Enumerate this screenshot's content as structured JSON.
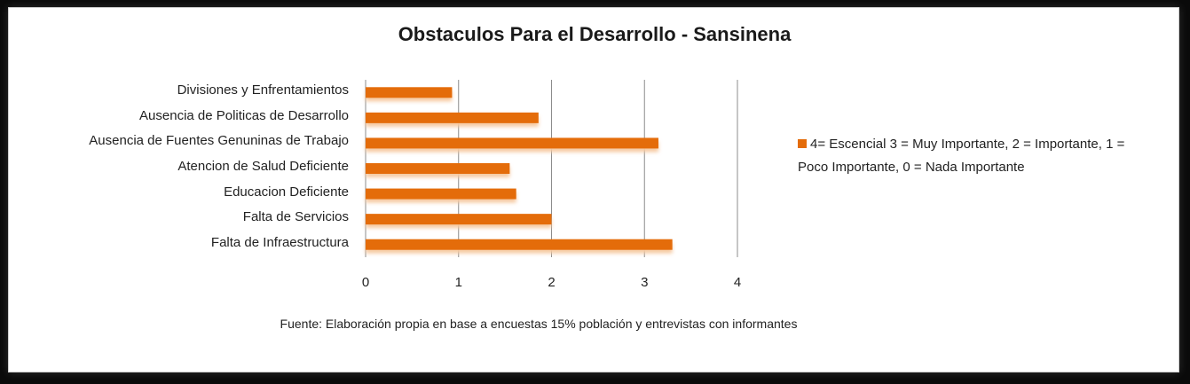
{
  "chart_data": {
    "type": "bar",
    "orientation": "horizontal",
    "title": "Obstaculos Para el Desarrollo - Sansinena",
    "categories": [
      "Divisiones y Enfrentamientos",
      "Ausencia de Politicas de Desarrollo",
      "Ausencia de Fuentes Genuninas de Trabajo",
      "Atencion de Salud Deficiente",
      "Educacion Deficiente",
      "Falta de Servicios",
      "Falta de Infraestructura"
    ],
    "series": [
      {
        "name": "4= Escencial 3 = Muy Importante,  2 = Importante, 1 = Poco Importante,  0 = Nada Importante",
        "values": [
          0.93,
          1.86,
          3.15,
          1.55,
          1.62,
          2.0,
          3.3
        ],
        "color": "#e46c0a"
      }
    ],
    "xlim": [
      0,
      4
    ],
    "xticks": [
      "0",
      "1",
      "2",
      "3",
      "4"
    ],
    "grid": true,
    "legend_position": "right",
    "source": "Fuente: Elaboración propia en base a encuestas 15% población y entrevistas con informantes"
  }
}
